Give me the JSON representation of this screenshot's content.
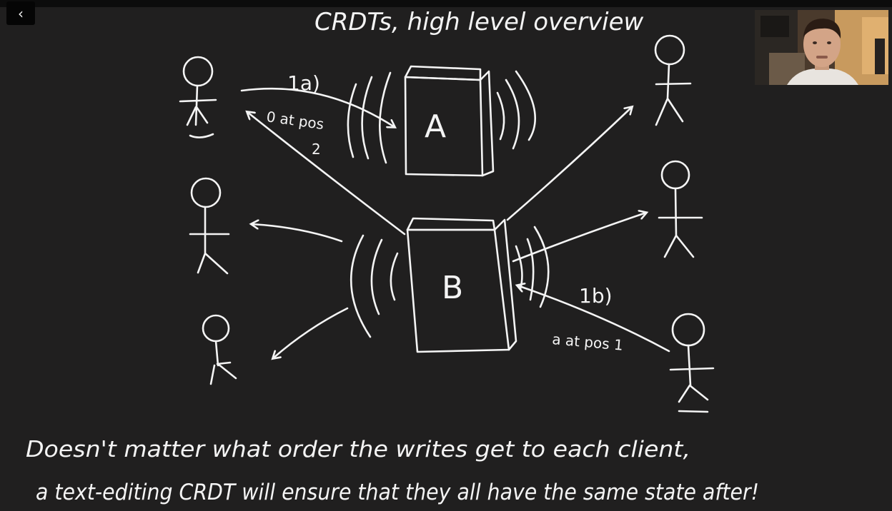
{
  "player": {
    "back_button_label": "‹"
  },
  "whiteboard": {
    "title": "CRDTs, high level overview",
    "server_a_label": "A",
    "server_b_label": "B",
    "step_1a": "1a)",
    "step_1a_note_line1": "0 at pos",
    "step_1a_note_line2": "2",
    "step_1b": "1b)",
    "step_1b_note": "a at pos 1",
    "caption_line1": "Doesn't matter what order the writes get to each client,",
    "caption_line2": "a text-editing CRDT will ensure that they all have the same state after!"
  },
  "webcam": {
    "description_icon": "presenter-webcam-icon"
  },
  "colors": {
    "background": "#201f1f",
    "chalk": "#f4f4f4"
  }
}
